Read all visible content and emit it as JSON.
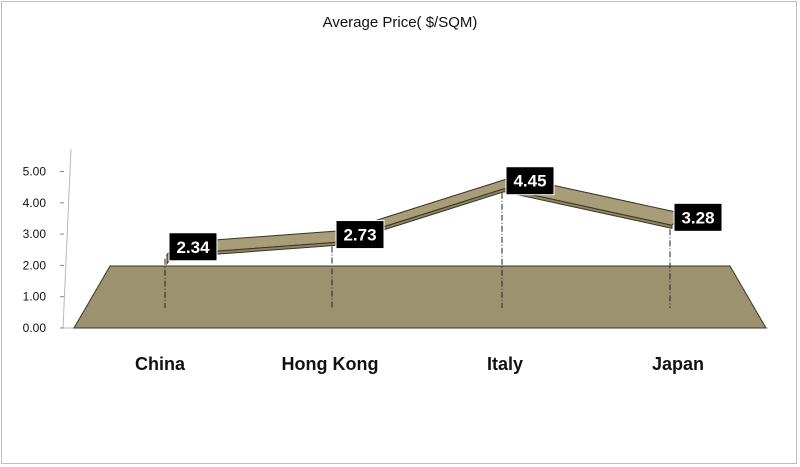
{
  "chart_data": {
    "type": "line",
    "title": "Average Price( $/SQM)",
    "xlabel": "",
    "ylabel": "",
    "categories": [
      "China",
      "Hong Kong",
      "Italy",
      "Japan"
    ],
    "series": [
      {
        "values": [
          2.34,
          2.73,
          4.45,
          3.28
        ]
      }
    ],
    "data_labels": [
      "2.34",
      "2.73",
      "4.45",
      "3.28"
    ],
    "ylim": [
      0,
      5
    ],
    "yticks": [
      "0.00",
      "1.00",
      "2.00",
      "3.00",
      "4.00",
      "5.00"
    ],
    "grid": false,
    "legend": "none",
    "style": "3d-line",
    "colors": {
      "ribbon_front": "#8e8462",
      "ribbon_top": "#a79d78",
      "floor": "#9d9270",
      "edge": "#3a3526",
      "label_bg": "#000000",
      "label_text": "#ffffff"
    }
  }
}
